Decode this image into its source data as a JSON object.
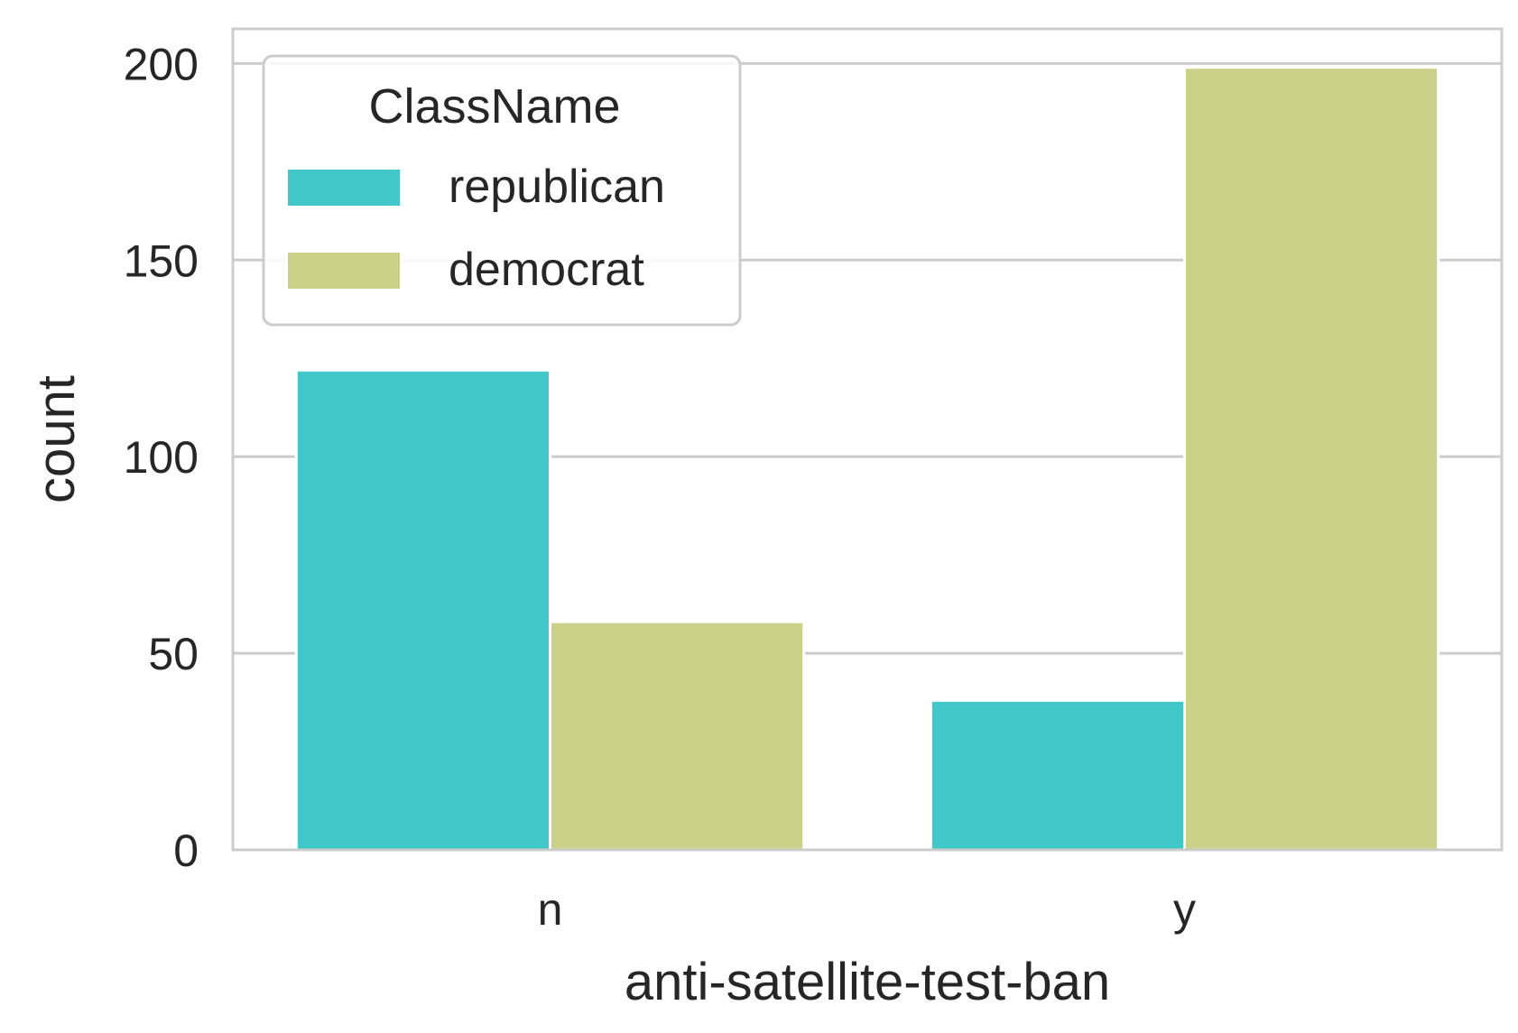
{
  "chart_data": {
    "type": "bar",
    "categories": [
      "n",
      "y"
    ],
    "series": [
      {
        "name": "republican",
        "values": [
          122,
          38
        ],
        "color": "#42C7C8"
      },
      {
        "name": "democrat",
        "values": [
          58,
          199
        ],
        "color": "#CCD18A"
      }
    ],
    "xlabel": "anti-satellite-test-ban",
    "ylabel": "count",
    "ylim": [
      0,
      208.8
    ],
    "yticks": [
      0,
      50,
      100,
      150,
      200
    ],
    "grid": true,
    "legend": {
      "title": "ClassName",
      "placement": "top-left"
    },
    "colors": {
      "grid": "#CCCCCC",
      "frame": "#CCCCCC",
      "text": "#262626"
    }
  }
}
